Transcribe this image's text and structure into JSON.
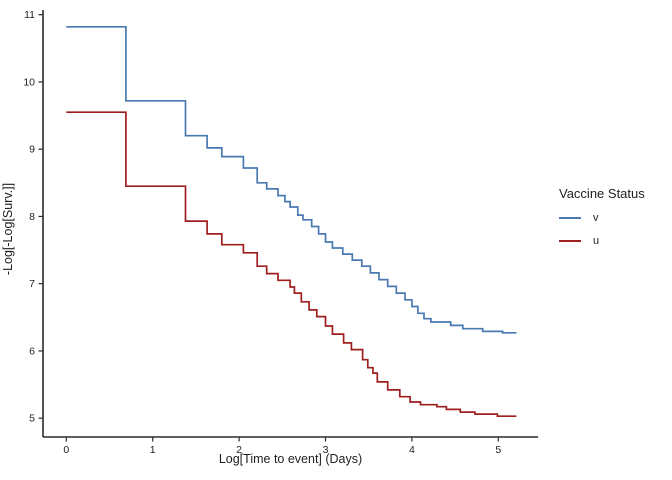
{
  "chart_data": {
    "type": "line",
    "subtype": "step-post",
    "title": "",
    "xlabel": "Log[Time to event] (Days)",
    "ylabel": "-Log[-Log[Surv.]]",
    "xlim": [
      -0.27,
      5.46
    ],
    "ylim": [
      4.72,
      11.07
    ],
    "x_ticks": [
      0,
      1,
      2,
      3,
      4,
      5
    ],
    "y_ticks": [
      5,
      6,
      7,
      8,
      9,
      10,
      11
    ],
    "grid": false,
    "axis_color": "#2a2a2a",
    "legend": {
      "title": "Vaccine Status",
      "position": "right",
      "entries": [
        {
          "label": "v",
          "color": "#4a79b2"
        },
        {
          "label": "u",
          "color": "#9e1f1f"
        }
      ]
    },
    "series": [
      {
        "name": "v",
        "color": "#4a79b2",
        "x": [
          0,
          0.69,
          1.38,
          1.63,
          1.8,
          2.05,
          2.21,
          2.32,
          2.45,
          2.53,
          2.59,
          2.68,
          2.74,
          2.84,
          2.92,
          3.0,
          3.08,
          3.2,
          3.31,
          3.42,
          3.52,
          3.62,
          3.72,
          3.82,
          3.92,
          4.0,
          4.07,
          4.14,
          4.22,
          4.45,
          4.59,
          4.82,
          5.05
        ],
        "y": [
          10.82,
          9.72,
          9.2,
          9.02,
          8.89,
          8.72,
          8.5,
          8.41,
          8.31,
          8.22,
          8.14,
          8.02,
          7.95,
          7.85,
          7.74,
          7.62,
          7.53,
          7.44,
          7.35,
          7.26,
          7.16,
          7.06,
          6.96,
          6.86,
          6.76,
          6.66,
          6.56,
          6.48,
          6.43,
          6.38,
          6.33,
          6.29,
          6.27
        ],
        "x_end": 5.21
      },
      {
        "name": "u",
        "color": "#9e1f1f",
        "x": [
          0,
          0.69,
          1.38,
          1.63,
          1.8,
          2.05,
          2.21,
          2.32,
          2.45,
          2.59,
          2.64,
          2.72,
          2.81,
          2.9,
          3.0,
          3.08,
          3.21,
          3.3,
          3.43,
          3.49,
          3.55,
          3.6,
          3.72,
          3.86,
          3.98,
          4.1,
          4.29,
          4.4,
          4.56,
          4.73,
          4.99
        ],
        "y": [
          9.55,
          8.45,
          7.93,
          7.74,
          7.58,
          7.46,
          7.26,
          7.15,
          7.05,
          6.95,
          6.86,
          6.73,
          6.61,
          6.51,
          6.37,
          6.25,
          6.12,
          6.02,
          5.87,
          5.75,
          5.67,
          5.54,
          5.42,
          5.32,
          5.24,
          5.2,
          5.17,
          5.13,
          5.09,
          5.06,
          5.03
        ],
        "x_end": 5.21
      }
    ]
  }
}
